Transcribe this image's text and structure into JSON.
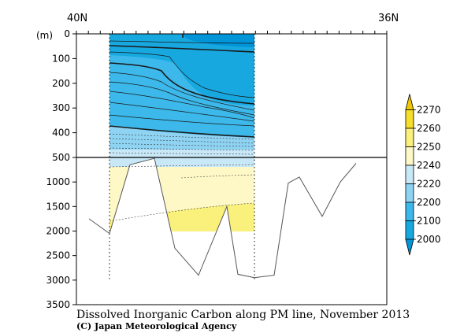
{
  "chart_data": {
    "type": "heatmap",
    "title": "Dissolved Inorganic Carbon along PM line, November 2013",
    "credit": "(C) Japan Meteorological Agency",
    "x_start_label": "40N",
    "x_end_label": "36N",
    "y_unit_label": "(m)",
    "y_ticks_upper": [
      0,
      100,
      200,
      300,
      400,
      500
    ],
    "y_ticks_lower": [
      1000,
      1500,
      2000,
      2500,
      3000,
      3500
    ],
    "y_break_depth": 500,
    "colorbar": {
      "levels": [
        2000,
        2100,
        2200,
        2220,
        2240,
        2250,
        2260,
        2270
      ],
      "colors": [
        "#0094d8",
        "#17a8e0",
        "#3cb8ea",
        "#8fd3f3",
        "#c8e8f8",
        "#fdf8c6",
        "#faf07c",
        "#f5de2c",
        "#f0c800"
      ]
    },
    "bathymetry_depth_m": [
      1750,
      2050,
      650,
      520,
      2350,
      2900,
      1500,
      2880,
      2950,
      2900,
      1020,
      900,
      1700,
      1000,
      620
    ]
  }
}
